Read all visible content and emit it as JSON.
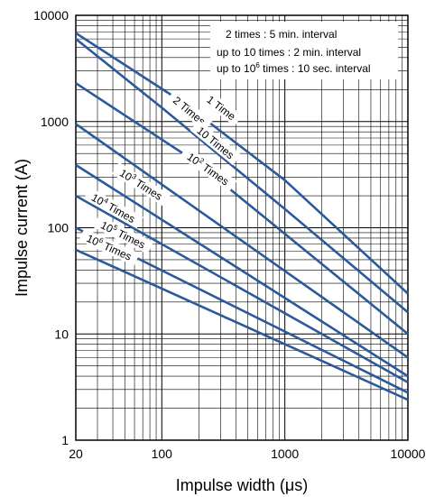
{
  "chart_data": {
    "type": "line",
    "title": "",
    "xlabel": "Impulse width (μs)",
    "ylabel": "Impulse current (A)",
    "xscale": "log",
    "yscale": "log",
    "xlim": [
      20,
      10000
    ],
    "ylim": [
      1,
      10000
    ],
    "grid": true,
    "x_tick_labels": [
      "20",
      "100",
      "1000",
      "10000"
    ],
    "x_tick_values": [
      20,
      100,
      1000,
      10000
    ],
    "y_tick_labels": [
      "1",
      "10",
      "100",
      "1000",
      "10000"
    ],
    "y_tick_values": [
      1,
      10,
      100,
      1000,
      10000
    ],
    "annotations": [
      {
        "pre": "2 times : 5 min. interval",
        "sup": "",
        "post": ""
      },
      {
        "pre": "up to 10 times : 2 min. interval",
        "sup": "",
        "post": ""
      },
      {
        "pre": "up to 10",
        "sup": "6",
        "post": " times : 10 sec. interval"
      }
    ],
    "color": "#2a5a9a",
    "series": [
      {
        "label_pre": "1 Time",
        "label_sup": "",
        "label_post": "",
        "label_at": [
          300,
          1320
        ],
        "x": [
          20,
          150,
          1000,
          10000
        ],
        "y": [
          6800,
          1500,
          280,
          24
        ]
      },
      {
        "label_pre": "2 Times",
        "label_sup": "",
        "label_post": "",
        "label_at": [
          165,
          1240
        ],
        "x": [
          20,
          100,
          1000,
          10000
        ],
        "y": [
          6000,
          1350,
          150,
          16
        ]
      },
      {
        "label_pre": "10 Times",
        "label_sup": "",
        "label_post": "",
        "label_at": [
          270,
          620
        ],
        "x": [
          20,
          200,
          10000
        ],
        "y": [
          2300,
          400,
          10
        ]
      },
      {
        "label_pre": "10",
        "label_sup": "2",
        "label_post": " Times",
        "label_at": [
          235,
          350
        ],
        "x": [
          20,
          10000
        ],
        "y": [
          950,
          6
        ]
      },
      {
        "label_pre": "10",
        "label_sup": "3",
        "label_post": " Times",
        "label_at": [
          67,
          250
        ],
        "x": [
          20,
          10000
        ],
        "y": [
          390,
          4
        ]
      },
      {
        "label_pre": "10",
        "label_sup": "4",
        "label_post": " Times",
        "label_at": [
          40,
          150
        ],
        "x": [
          20,
          10000
        ],
        "y": [
          200,
          3.5
        ]
      },
      {
        "label_pre": "10",
        "label_sup": "5",
        "label_post": " Times",
        "label_at": [
          48,
          84
        ],
        "x": [
          20,
          10000
        ],
        "y": [
          100,
          2.8
        ]
      },
      {
        "label_pre": "10",
        "label_sup": "6",
        "label_post": " Times",
        "label_at": [
          37,
          64
        ],
        "x": [
          20,
          10000
        ],
        "y": [
          62,
          2.4
        ]
      }
    ]
  }
}
